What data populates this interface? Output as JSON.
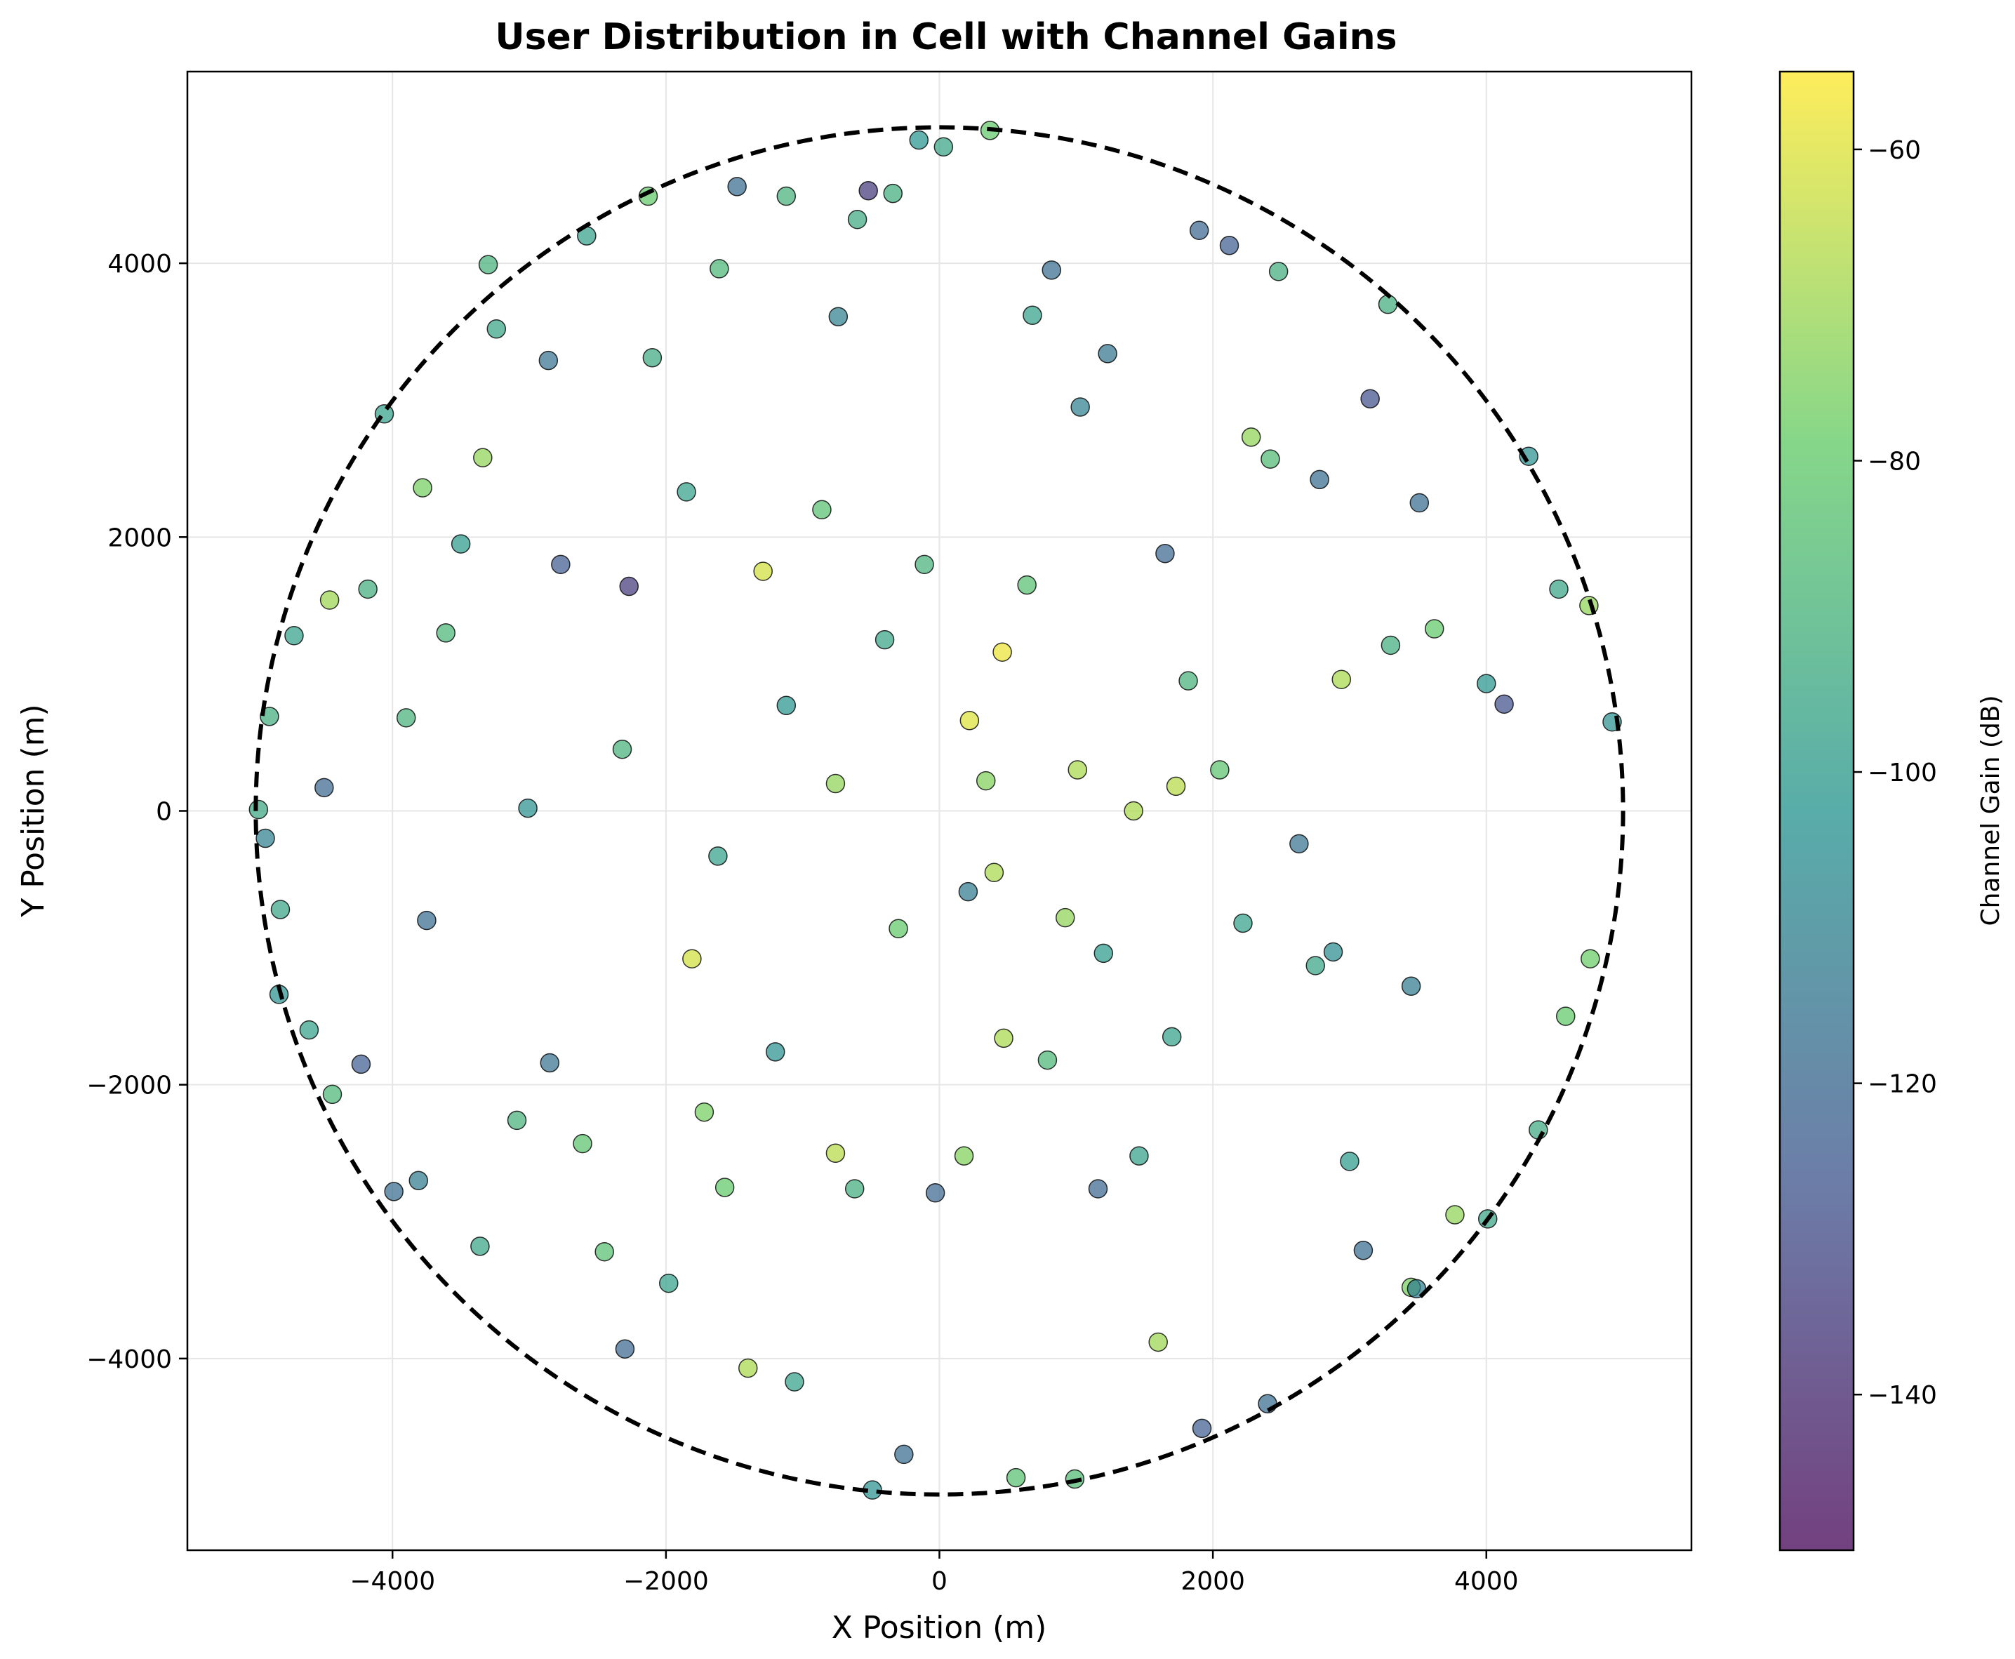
{
  "chart_data": {
    "type": "scatter",
    "title": "User Distribution in Cell with Channel Gains",
    "xlabel": "X Position (m)",
    "ylabel": "Y Position (m)",
    "xlim": [
      -5500,
      5500
    ],
    "ylim": [
      -5400,
      5400
    ],
    "x_ticks": [
      -4000,
      -2000,
      0,
      2000,
      4000
    ],
    "y_ticks": [
      -4000,
      -2000,
      0,
      2000,
      4000
    ],
    "x_tick_labels": [
      "−4000",
      "−2000",
      "0",
      "2000",
      "4000"
    ],
    "y_tick_labels": [
      "−4000",
      "−2000",
      "0",
      "2000",
      "4000"
    ],
    "grid": true,
    "cell_boundary": {
      "shape": "circle",
      "center": [
        0,
        0
      ],
      "radius": 5000,
      "style": "dashed",
      "color": "#000000"
    },
    "colorbar": {
      "label": "Channel Gain (dB)",
      "range": [
        -150,
        -55
      ],
      "ticks": [
        -60,
        -80,
        -100,
        -120,
        -140
      ],
      "tick_labels": [
        "−60",
        "−80",
        "−100",
        "−120",
        "−140"
      ],
      "colormap": "viridis",
      "colors": [
        "#440154",
        "#3b528b",
        "#21918c",
        "#5ec962",
        "#fde725"
      ]
    },
    "marker": {
      "edge_color": "#000000",
      "alpha": 0.7
    },
    "points": [
      {
        "x": -4980,
        "y": 10,
        "gain": -95
      },
      {
        "x": -4900,
        "y": 690,
        "gain": -92
      },
      {
        "x": -4720,
        "y": 1280,
        "gain": -98
      },
      {
        "x": -4460,
        "y": 1540,
        "gain": -70
      },
      {
        "x": -4500,
        "y": 170,
        "gain": -120
      },
      {
        "x": -4180,
        "y": 1620,
        "gain": -92
      },
      {
        "x": -4060,
        "y": 2900,
        "gain": -98
      },
      {
        "x": -3900,
        "y": 680,
        "gain": -90
      },
      {
        "x": -3780,
        "y": 2360,
        "gain": -76
      },
      {
        "x": -3610,
        "y": 1300,
        "gain": -88
      },
      {
        "x": -3340,
        "y": 2580,
        "gain": -72
      },
      {
        "x": -3240,
        "y": 3520,
        "gain": -96
      },
      {
        "x": -2860,
        "y": 3290,
        "gain": -116
      },
      {
        "x": -2770,
        "y": 1800,
        "gain": -125
      },
      {
        "x": -2580,
        "y": 4200,
        "gain": -98
      },
      {
        "x": -2270,
        "y": 1640,
        "gain": -135
      },
      {
        "x": -2130,
        "y": 4490,
        "gain": -80
      },
      {
        "x": -1850,
        "y": 2330,
        "gain": -98
      },
      {
        "x": -1610,
        "y": 3960,
        "gain": -88
      },
      {
        "x": -1480,
        "y": 4560,
        "gain": -118
      },
      {
        "x": -1290,
        "y": 1750,
        "gain": -62
      },
      {
        "x": -1120,
        "y": 4490,
        "gain": -90
      },
      {
        "x": -860,
        "y": 2200,
        "gain": -84
      },
      {
        "x": -740,
        "y": 3610,
        "gain": -110
      },
      {
        "x": -600,
        "y": 4320,
        "gain": -94
      },
      {
        "x": -520,
        "y": 4530,
        "gain": -135
      },
      {
        "x": -340,
        "y": 4510,
        "gain": -92
      },
      {
        "x": -150,
        "y": 4900,
        "gain": -102
      },
      {
        "x": 30,
        "y": 4850,
        "gain": -96
      },
      {
        "x": 370,
        "y": 4970,
        "gain": -80
      },
      {
        "x": 460,
        "y": 1160,
        "gain": -58
      },
      {
        "x": 220,
        "y": 660,
        "gain": -60
      },
      {
        "x": 680,
        "y": 3620,
        "gain": -98
      },
      {
        "x": 820,
        "y": 3950,
        "gain": -118
      },
      {
        "x": 1030,
        "y": 2950,
        "gain": -110
      },
      {
        "x": 1230,
        "y": 3340,
        "gain": -115
      },
      {
        "x": 1650,
        "y": 1880,
        "gain": -120
      },
      {
        "x": 1730,
        "y": 180,
        "gain": -66
      },
      {
        "x": 1900,
        "y": 4240,
        "gain": -120
      },
      {
        "x": 2120,
        "y": 4130,
        "gain": -124
      },
      {
        "x": 2280,
        "y": 2730,
        "gain": -72
      },
      {
        "x": 2480,
        "y": 3940,
        "gain": -92
      },
      {
        "x": 2780,
        "y": 2420,
        "gain": -118
      },
      {
        "x": 2940,
        "y": 960,
        "gain": -68
      },
      {
        "x": 3150,
        "y": 3010,
        "gain": -128
      },
      {
        "x": 3280,
        "y": 3700,
        "gain": -92
      },
      {
        "x": 3510,
        "y": 2250,
        "gain": -118
      },
      {
        "x": 3620,
        "y": 1330,
        "gain": -80
      },
      {
        "x": 4000,
        "y": 930,
        "gain": -102
      },
      {
        "x": 4130,
        "y": 780,
        "gain": -128
      },
      {
        "x": 4310,
        "y": 2590,
        "gain": -104
      },
      {
        "x": 4530,
        "y": 1620,
        "gain": -96
      },
      {
        "x": 4750,
        "y": 1500,
        "gain": -72
      },
      {
        "x": 4920,
        "y": 650,
        "gain": -104
      },
      {
        "x": 4760,
        "y": -1080,
        "gain": -78
      },
      {
        "x": 4580,
        "y": -1500,
        "gain": -80
      },
      {
        "x": 4380,
        "y": -2330,
        "gain": -94
      },
      {
        "x": 4010,
        "y": -2980,
        "gain": -96
      },
      {
        "x": 3770,
        "y": -2950,
        "gain": -72
      },
      {
        "x": 3450,
        "y": -3480,
        "gain": -76
      },
      {
        "x": 3490,
        "y": -3490,
        "gain": -112
      },
      {
        "x": 3100,
        "y": -3210,
        "gain": -118
      },
      {
        "x": 2880,
        "y": -1030,
        "gain": -106
      },
      {
        "x": 2630,
        "y": -240,
        "gain": -116
      },
      {
        "x": 2400,
        "y": -4330,
        "gain": -118
      },
      {
        "x": 2220,
        "y": -820,
        "gain": -98
      },
      {
        "x": 1920,
        "y": -4510,
        "gain": -124
      },
      {
        "x": 1600,
        "y": -3880,
        "gain": -70
      },
      {
        "x": 1460,
        "y": -2520,
        "gain": -98
      },
      {
        "x": 1200,
        "y": -1040,
        "gain": -100
      },
      {
        "x": 1160,
        "y": -2760,
        "gain": -120
      },
      {
        "x": 990,
        "y": -4880,
        "gain": -86
      },
      {
        "x": 790,
        "y": -1820,
        "gain": -88
      },
      {
        "x": 560,
        "y": -4870,
        "gain": -84
      },
      {
        "x": 470,
        "y": -1660,
        "gain": -68
      },
      {
        "x": 400,
        "y": -450,
        "gain": -68
      },
      {
        "x": 180,
        "y": -2520,
        "gain": -74
      },
      {
        "x": -30,
        "y": -2790,
        "gain": -120
      },
      {
        "x": -260,
        "y": -4700,
        "gain": -118
      },
      {
        "x": -490,
        "y": -4960,
        "gain": -104
      },
      {
        "x": -620,
        "y": -2760,
        "gain": -92
      },
      {
        "x": -760,
        "y": -2500,
        "gain": -66
      },
      {
        "x": -1060,
        "y": -4170,
        "gain": -98
      },
      {
        "x": -1400,
        "y": -4070,
        "gain": -68
      },
      {
        "x": -1570,
        "y": -2750,
        "gain": -80
      },
      {
        "x": -1720,
        "y": -2200,
        "gain": -76
      },
      {
        "x": -1810,
        "y": -1080,
        "gain": -62
      },
      {
        "x": -1980,
        "y": -3450,
        "gain": -98
      },
      {
        "x": -2300,
        "y": -3930,
        "gain": -120
      },
      {
        "x": -2450,
        "y": -3220,
        "gain": -84
      },
      {
        "x": -2610,
        "y": -2430,
        "gain": -82
      },
      {
        "x": -2850,
        "y": -1840,
        "gain": -116
      },
      {
        "x": -3090,
        "y": -2260,
        "gain": -90
      },
      {
        "x": -3360,
        "y": -3180,
        "gain": -96
      },
      {
        "x": -3810,
        "y": -2700,
        "gain": -112
      },
      {
        "x": -3990,
        "y": -2780,
        "gain": -118
      },
      {
        "x": -4230,
        "y": -1850,
        "gain": -124
      },
      {
        "x": -4440,
        "y": -2070,
        "gain": -88
      },
      {
        "x": -4610,
        "y": -1600,
        "gain": -98
      },
      {
        "x": -4830,
        "y": -1340,
        "gain": -104
      },
      {
        "x": -4930,
        "y": -200,
        "gain": -110
      },
      {
        "x": -4820,
        "y": -720,
        "gain": -96
      },
      {
        "x": -3750,
        "y": -800,
        "gain": -118
      },
      {
        "x": -3010,
        "y": 20,
        "gain": -104
      },
      {
        "x": -2320,
        "y": 450,
        "gain": -90
      },
      {
        "x": -1620,
        "y": -330,
        "gain": -98
      },
      {
        "x": -760,
        "y": 200,
        "gain": -72
      },
      {
        "x": -110,
        "y": 1800,
        "gain": -90
      },
      {
        "x": 340,
        "y": 220,
        "gain": -74
      },
      {
        "x": 1010,
        "y": 300,
        "gain": -68
      },
      {
        "x": 1420,
        "y": 0,
        "gain": -68
      },
      {
        "x": 2050,
        "y": 300,
        "gain": -82
      },
      {
        "x": 2750,
        "y": -1130,
        "gain": -96
      },
      {
        "x": 3300,
        "y": 1210,
        "gain": -92
      },
      {
        "x": 3450,
        "y": -1280,
        "gain": -112
      },
      {
        "x": 920,
        "y": -780,
        "gain": -72
      },
      {
        "x": -300,
        "y": -860,
        "gain": -80
      },
      {
        "x": 210,
        "y": -590,
        "gain": -112
      },
      {
        "x": -1120,
        "y": 770,
        "gain": -102
      },
      {
        "x": -400,
        "y": 1250,
        "gain": -96
      },
      {
        "x": 640,
        "y": 1650,
        "gain": -84
      },
      {
        "x": 1820,
        "y": 950,
        "gain": -90
      },
      {
        "x": 2420,
        "y": 2570,
        "gain": -86
      },
      {
        "x": -2100,
        "y": 3310,
        "gain": -94
      },
      {
        "x": -3500,
        "y": 1950,
        "gain": -100
      },
      {
        "x": -3300,
        "y": 3990,
        "gain": -90
      },
      {
        "x": 3000,
        "y": -2560,
        "gain": -100
      },
      {
        "x": -1200,
        "y": -1760,
        "gain": -104
      },
      {
        "x": 1700,
        "y": -1650,
        "gain": -98
      }
    ]
  }
}
